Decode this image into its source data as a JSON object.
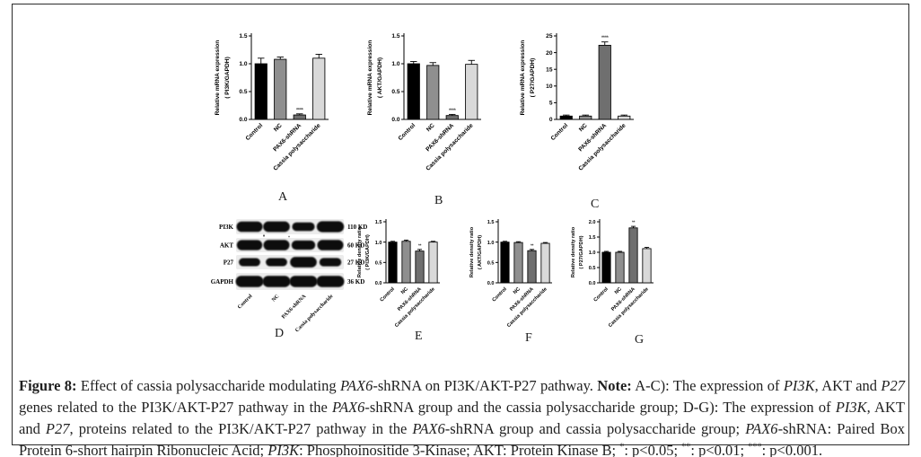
{
  "figure": {
    "panel_letters": [
      "A",
      "B",
      "C",
      "D",
      "E",
      "F",
      "G"
    ],
    "caption_segments": [
      {
        "text": "Figure 8:",
        "bold": true
      },
      {
        "text": " Effect of cassia polysaccharide modulating "
      },
      {
        "text": "PAX6",
        "italic": true
      },
      {
        "text": "-shRNA on PI3K/AKT-P27 pathway. "
      },
      {
        "text": "Note:",
        "bold": true
      },
      {
        "text": " A-C): The expression of "
      },
      {
        "text": "PI3K",
        "italic": true
      },
      {
        "text": ", AKT and "
      },
      {
        "text": "P27",
        "italic": true
      },
      {
        "text": " genes related to the PI3K/AKT-P27 pathway in the "
      },
      {
        "text": "PAX6",
        "italic": true
      },
      {
        "text": "-shRNA group and the cassia polysaccharide group; D-G): The expression of "
      },
      {
        "text": "PI3K",
        "italic": true
      },
      {
        "text": ", AKT and "
      },
      {
        "text": "P27",
        "italic": true
      },
      {
        "text": ", proteins related to the PI3K/AKT-P27 pathway in the "
      },
      {
        "text": "PAX6",
        "italic": true
      },
      {
        "text": "-shRNA group and cassia polysaccharide group; "
      },
      {
        "text": "PAX6",
        "italic": true
      },
      {
        "text": "-shRNA: Paired Box Protein 6-short hairpin Ribonucleic Acid; "
      },
      {
        "text": "PI3K",
        "italic": true
      },
      {
        "text": ": Phosphoinositide 3-Kinase; AKT: Protein Kinase B; "
      },
      {
        "text": "*",
        "sup": true
      },
      {
        "text": ": p<0.05; "
      },
      {
        "text": "**",
        "sup": true
      },
      {
        "text": ": p<0.01; "
      },
      {
        "text": "***",
        "sup": true
      },
      {
        "text": ": p<0.001."
      }
    ]
  },
  "colors": {
    "bar_fills": [
      "#000000",
      "#8f8f8f",
      "#6f6f6f",
      "#d9d9d9"
    ],
    "axis": "#000000",
    "blot_strip": "#ececec",
    "blot_band": "#0a0a0a"
  },
  "chart_data": [
    {
      "type": "bar",
      "panel": "A",
      "ylabel_lines": [
        "Relative mRNA expression",
        "( PI3K/GAPDH)"
      ],
      "categories": [
        "Control",
        "NC",
        "PAX6-shRNA",
        "Cassia polysaccharide"
      ],
      "values": [
        1.0,
        1.08,
        0.08,
        1.1
      ],
      "errors": [
        0.1,
        0.04,
        0.02,
        0.07
      ],
      "ylim": [
        0,
        1.5
      ],
      "yticks": [
        0,
        0.5,
        1.0,
        1.5
      ],
      "ytick_labels": [
        "0.0",
        "0.5",
        "1.0",
        "1.5"
      ],
      "grid": false,
      "legend": "none",
      "sig": [
        {
          "index": 2,
          "label": "****"
        }
      ]
    },
    {
      "type": "bar",
      "panel": "B",
      "ylabel_lines": [
        "Relative mRNA expression",
        "( AKT/GAPDH)"
      ],
      "categories": [
        "Control",
        "NC",
        "PAX6-shRNA",
        "Cassia polysaccharide"
      ],
      "values": [
        1.0,
        0.97,
        0.07,
        0.99
      ],
      "errors": [
        0.04,
        0.05,
        0.02,
        0.07
      ],
      "ylim": [
        0,
        1.5
      ],
      "yticks": [
        0,
        0.5,
        1.0,
        1.5
      ],
      "ytick_labels": [
        "0.0",
        "0.5",
        "1.0",
        "1.5"
      ],
      "grid": false,
      "legend": "none",
      "sig": [
        {
          "index": 2,
          "label": "****"
        }
      ]
    },
    {
      "type": "bar",
      "panel": "C",
      "ylabel_lines": [
        "Relative mRNA expression",
        "( P27/GAPDH)"
      ],
      "categories": [
        "Control",
        "NC",
        "PAX6-shRNA",
        "Cassia polysaccharide"
      ],
      "values": [
        1.0,
        1.0,
        22.2,
        1.0
      ],
      "errors": [
        0.3,
        0.3,
        1.0,
        0.3
      ],
      "ylim": [
        0,
        25
      ],
      "yticks": [
        0,
        5,
        10,
        15,
        20,
        25
      ],
      "ytick_labels": [
        "0",
        "5",
        "10",
        "15",
        "20",
        "25"
      ],
      "grid": false,
      "legend": "none",
      "sig": [
        {
          "index": 2,
          "label": "****"
        }
      ]
    },
    {
      "type": "bar",
      "panel": "E",
      "ylabel_lines": [
        "Relative density ratio",
        "( PI3K/GAPDH)"
      ],
      "categories": [
        "Control",
        "NC",
        "PAX6-shRNA",
        "Cassia polysaccharide"
      ],
      "values": [
        1.0,
        1.02,
        0.78,
        1.0
      ],
      "errors": [
        0.02,
        0.03,
        0.04,
        0.02
      ],
      "ylim": [
        0,
        1.5
      ],
      "yticks": [
        0,
        0.5,
        1.0,
        1.5
      ],
      "ytick_labels": [
        "0.0",
        "0.5",
        "1.0",
        "1.5"
      ],
      "grid": false,
      "legend": "none",
      "sig": [
        {
          "index": 2,
          "label": "**"
        }
      ]
    },
    {
      "type": "bar",
      "panel": "F",
      "ylabel_lines": [
        "Relative density ratio",
        "( AKT/GAPDH)"
      ],
      "categories": [
        "Control",
        "NC",
        "PAX6-shRNA",
        "Cassia polysaccharide"
      ],
      "values": [
        1.0,
        0.99,
        0.79,
        0.97
      ],
      "errors": [
        0.02,
        0.02,
        0.03,
        0.02
      ],
      "ylim": [
        0,
        1.5
      ],
      "yticks": [
        0,
        0.5,
        1.0,
        1.5
      ],
      "ytick_labels": [
        "0.0",
        "0.5",
        "1.0",
        "1.5"
      ],
      "grid": false,
      "legend": "none",
      "sig": [
        {
          "index": 2,
          "label": "**"
        }
      ]
    },
    {
      "type": "bar",
      "panel": "G",
      "ylabel_lines": [
        "Relative density ratio",
        "( P27/GAPDH)"
      ],
      "categories": [
        "Control",
        "NC",
        "PAX6-shRNA",
        "Cassia polysaccharide"
      ],
      "values": [
        1.0,
        1.0,
        1.8,
        1.12
      ],
      "errors": [
        0.03,
        0.03,
        0.05,
        0.04
      ],
      "ylim": [
        0,
        2.0
      ],
      "yticks": [
        0,
        0.5,
        1.0,
        1.5,
        2.0
      ],
      "ytick_labels": [
        "0.0",
        "0.5",
        "1.0",
        "1.5",
        "2.0"
      ],
      "grid": false,
      "legend": "none",
      "sig": [
        {
          "index": 2,
          "label": "**"
        }
      ]
    }
  ],
  "western_blot": {
    "lanes": [
      "Control",
      "NC",
      "PAX6-shRNA",
      "Cassia polysaccharide"
    ],
    "rows": [
      {
        "protein": "PI3K",
        "weight": "110 KD",
        "bands": [
          1.0,
          1.05,
          0.7,
          1.1
        ]
      },
      {
        "protein": "AKT",
        "weight": "60 KD",
        "bands": [
          0.95,
          1.0,
          0.8,
          1.0
        ]
      },
      {
        "protein": "P27",
        "weight": "27 KD",
        "bands": [
          0.6,
          0.6,
          1.05,
          0.65
        ]
      },
      {
        "protein": "GAPDH",
        "weight": "36 KD",
        "bands": [
          1.15,
          1.15,
          1.15,
          1.15
        ]
      }
    ]
  }
}
